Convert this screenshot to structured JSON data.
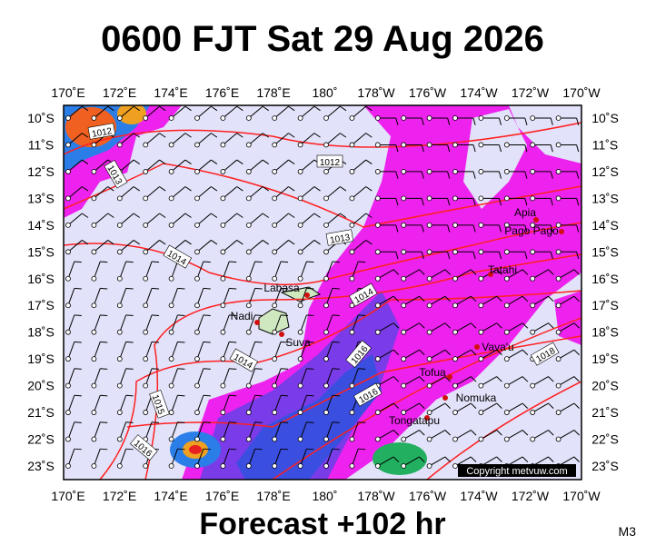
{
  "header": {
    "title": "0600 FJT Sat 29 Aug 2026"
  },
  "footer": {
    "forecast": "Forecast +102 hr",
    "model": "M3"
  },
  "map": {
    "longitude_labels": [
      "170˚E",
      "172˚E",
      "174˚E",
      "176˚E",
      "178˚E",
      "180˚",
      "178˚W",
      "176˚W",
      "174˚W",
      "172˚W",
      "170˚W"
    ],
    "latitude_labels": [
      "10˚S",
      "11˚S",
      "12˚S",
      "13˚S",
      "14˚S",
      "15˚S",
      "16˚S",
      "17˚S",
      "18˚S",
      "19˚S",
      "20˚S",
      "21˚S",
      "22˚S",
      "23˚S"
    ],
    "places": [
      "Apia",
      "Pago Pago",
      "Tatahi",
      "Labasa",
      "Nadi",
      "Suva",
      "Vava'u",
      "Tofua",
      "Nomuka",
      "Tongatapu"
    ],
    "isobar_labels": [
      "1012",
      "1012",
      "1013",
      "1013",
      "1014",
      "1014",
      "1014",
      "1015",
      "1016",
      "1016",
      "1016",
      "1018"
    ],
    "copyright": "Copyright metvuw.com"
  }
}
